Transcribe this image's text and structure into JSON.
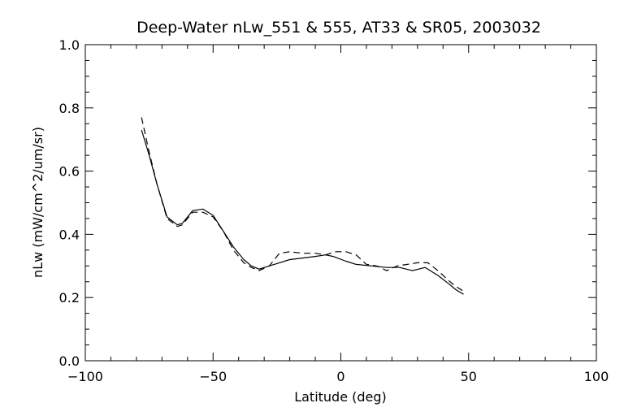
{
  "chart_data": {
    "type": "line",
    "title": "Deep-Water nLw_551 & 555, AT33 & SR05, 2003032",
    "xlabel": "Latitude (deg)",
    "ylabel": "nLw (mW/cm^2/um/sr)",
    "xlim": [
      -100,
      100
    ],
    "ylim": [
      0.0,
      1.0
    ],
    "x_ticks": [
      -100,
      -50,
      0,
      50,
      100
    ],
    "x_tick_labels": [
      "−100",
      "−50",
      "0",
      "50",
      "100"
    ],
    "y_ticks": [
      0.0,
      0.2,
      0.4,
      0.6,
      0.8,
      1.0
    ],
    "y_tick_labels": [
      "0.0",
      "0.2",
      "0.4",
      "0.6",
      "0.8",
      "1.0"
    ],
    "grid": false,
    "series": [
      {
        "style": "solid",
        "color": "#000000",
        "points": [
          [
            -78,
            0.73
          ],
          [
            -75,
            0.65
          ],
          [
            -72,
            0.56
          ],
          [
            -68,
            0.455
          ],
          [
            -64,
            0.43
          ],
          [
            -62,
            0.435
          ],
          [
            -58,
            0.475
          ],
          [
            -54,
            0.48
          ],
          [
            -50,
            0.46
          ],
          [
            -46,
            0.41
          ],
          [
            -42,
            0.36
          ],
          [
            -38,
            0.32
          ],
          [
            -35,
            0.3
          ],
          [
            -32,
            0.29
          ],
          [
            -28,
            0.3
          ],
          [
            -24,
            0.31
          ],
          [
            -20,
            0.32
          ],
          [
            -15,
            0.325
          ],
          [
            -10,
            0.33
          ],
          [
            -6,
            0.335
          ],
          [
            -3,
            0.33
          ],
          [
            2,
            0.315
          ],
          [
            6,
            0.305
          ],
          [
            12,
            0.3
          ],
          [
            18,
            0.295
          ],
          [
            23,
            0.295
          ],
          [
            28,
            0.285
          ],
          [
            33,
            0.295
          ],
          [
            38,
            0.27
          ],
          [
            42,
            0.245
          ],
          [
            45,
            0.225
          ],
          [
            48,
            0.21
          ]
        ]
      },
      {
        "style": "dashed",
        "color": "#000000",
        "points": [
          [
            -78,
            0.77
          ],
          [
            -75,
            0.66
          ],
          [
            -72,
            0.56
          ],
          [
            -68,
            0.45
          ],
          [
            -64,
            0.425
          ],
          [
            -62,
            0.43
          ],
          [
            -58,
            0.47
          ],
          [
            -54,
            0.47
          ],
          [
            -50,
            0.455
          ],
          [
            -46,
            0.41
          ],
          [
            -42,
            0.35
          ],
          [
            -38,
            0.31
          ],
          [
            -35,
            0.295
          ],
          [
            -32,
            0.285
          ],
          [
            -28,
            0.3
          ],
          [
            -24,
            0.34
          ],
          [
            -20,
            0.345
          ],
          [
            -15,
            0.34
          ],
          [
            -10,
            0.34
          ],
          [
            -6,
            0.335
          ],
          [
            -2,
            0.345
          ],
          [
            2,
            0.345
          ],
          [
            6,
            0.335
          ],
          [
            10,
            0.305
          ],
          [
            14,
            0.3
          ],
          [
            18,
            0.285
          ],
          [
            22,
            0.3
          ],
          [
            26,
            0.305
          ],
          [
            30,
            0.31
          ],
          [
            34,
            0.31
          ],
          [
            38,
            0.285
          ],
          [
            42,
            0.255
          ],
          [
            45,
            0.235
          ],
          [
            48,
            0.22
          ]
        ]
      }
    ]
  }
}
